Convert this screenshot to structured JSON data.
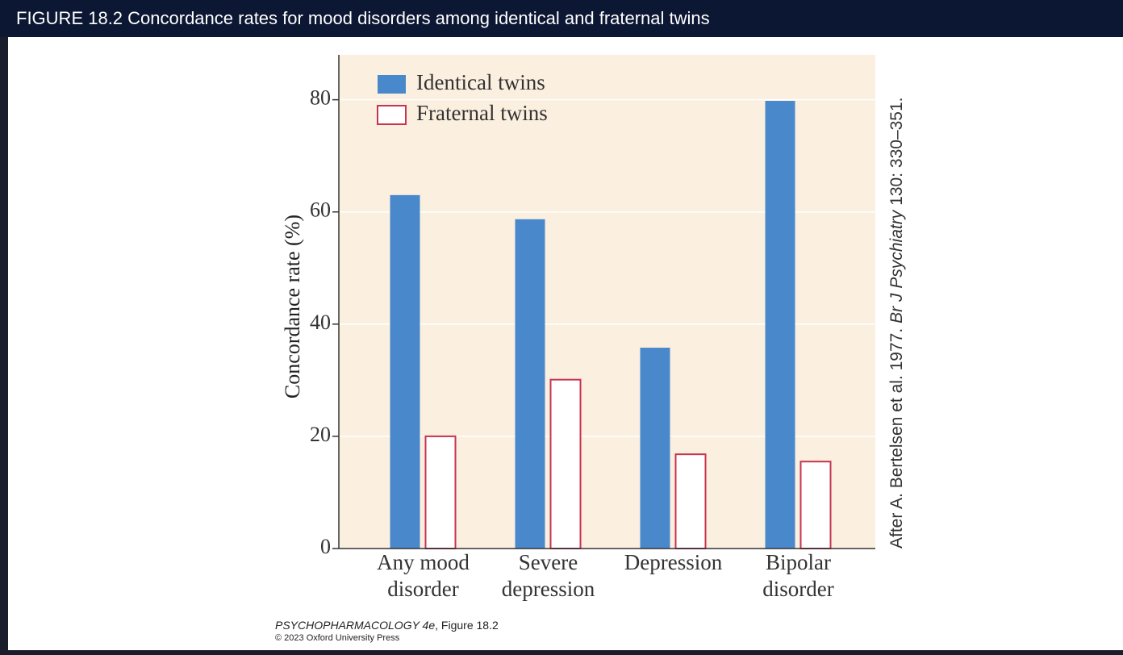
{
  "header": {
    "title": "FIGURE 18.2  Concordance rates for mood disorders among identical and fraternal twins"
  },
  "chart_data": {
    "type": "bar",
    "y_label": "Concordance rate (%)",
    "categories": [
      [
        "Any mood",
        "disorder"
      ],
      [
        "Severe",
        "depression"
      ],
      [
        "Depression"
      ],
      [
        "Bipolar",
        "disorder"
      ]
    ],
    "series": [
      {
        "name": "Identical twins",
        "color": "#4a88cc",
        "values": [
          63,
          58.7,
          35.8,
          79.8
        ]
      },
      {
        "name": "Fraternal twins",
        "color": "#ffffff",
        "edge_color": "#c8334f",
        "values": [
          20,
          30.1,
          16.8,
          15.5
        ]
      }
    ],
    "ylim": [
      0,
      88
    ],
    "yticks": [
      0,
      20,
      40,
      60,
      80
    ],
    "grid": true,
    "legend": "top-left",
    "source": [
      "After A. Bertelsen et al. 1977.",
      "Br J Psychiatry",
      "130: 330–351."
    ]
  },
  "footer": {
    "book": "PSYCHOPHARMACOLOGY 4e",
    "figure": ", Figure 18.2",
    "copyright": "© 2023 Oxford University Press"
  }
}
